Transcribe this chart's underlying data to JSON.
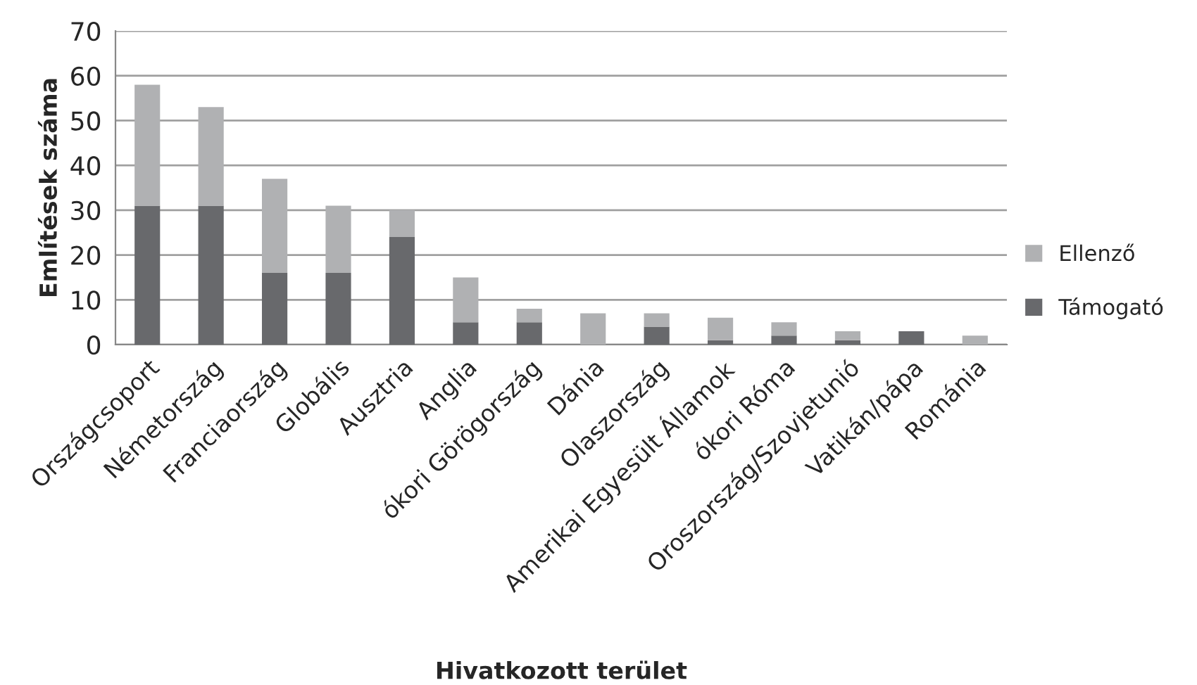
{
  "chart_data": {
    "type": "bar",
    "stacked": true,
    "xlabel": "Hivatkozott terület",
    "ylabel": "Említések száma",
    "categories": [
      "Országcsoport",
      "Németország",
      "Franciaország",
      "Globális",
      "Ausztria",
      "Anglia",
      "ókori Görögország",
      "Dánia",
      "Olaszország",
      "Amerikai Egyesült Államok",
      "ókori Róma",
      "Oroszország/Szovjetunió",
      "Vatikán/pápa",
      "Románia"
    ],
    "series": [
      {
        "name": "Támogató",
        "color": "#68696c",
        "values": [
          31,
          31,
          16,
          16,
          24,
          5,
          5,
          0,
          4,
          1,
          2,
          1,
          3,
          0
        ]
      },
      {
        "name": "Ellenző",
        "color": "#b0b1b3",
        "values": [
          27,
          22,
          21,
          15,
          6,
          10,
          3,
          7,
          3,
          5,
          3,
          2,
          0,
          2
        ]
      }
    ],
    "ylim": [
      0,
      70
    ],
    "yticks": [
      0,
      10,
      20,
      30,
      40,
      50,
      60,
      70
    ],
    "grid": "y",
    "legend": "right"
  }
}
